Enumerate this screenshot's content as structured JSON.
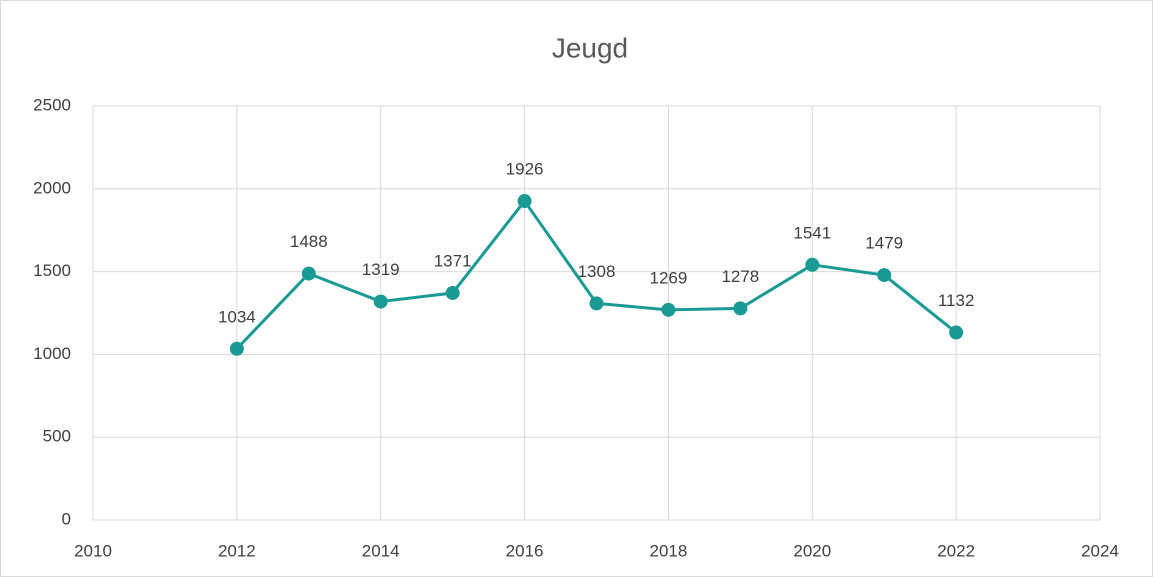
{
  "chart_data": {
    "type": "line",
    "title": "Jeugd",
    "x": [
      2012,
      2013,
      2014,
      2015,
      2016,
      2017,
      2018,
      2019,
      2020,
      2021,
      2022
    ],
    "series": [
      {
        "name": "Jeugd",
        "color": "#1a9a94",
        "values": [
          1034,
          1488,
          1319,
          1371,
          1926,
          1308,
          1269,
          1278,
          1541,
          1479,
          1132
        ]
      }
    ],
    "xlim": [
      2010,
      2024
    ],
    "xticks": [
      2010,
      2012,
      2014,
      2016,
      2018,
      2020,
      2022,
      2024
    ],
    "ylim": [
      0,
      2500
    ],
    "yticks": [
      0,
      500,
      1000,
      1500,
      2000,
      2500
    ],
    "grid": true
  }
}
